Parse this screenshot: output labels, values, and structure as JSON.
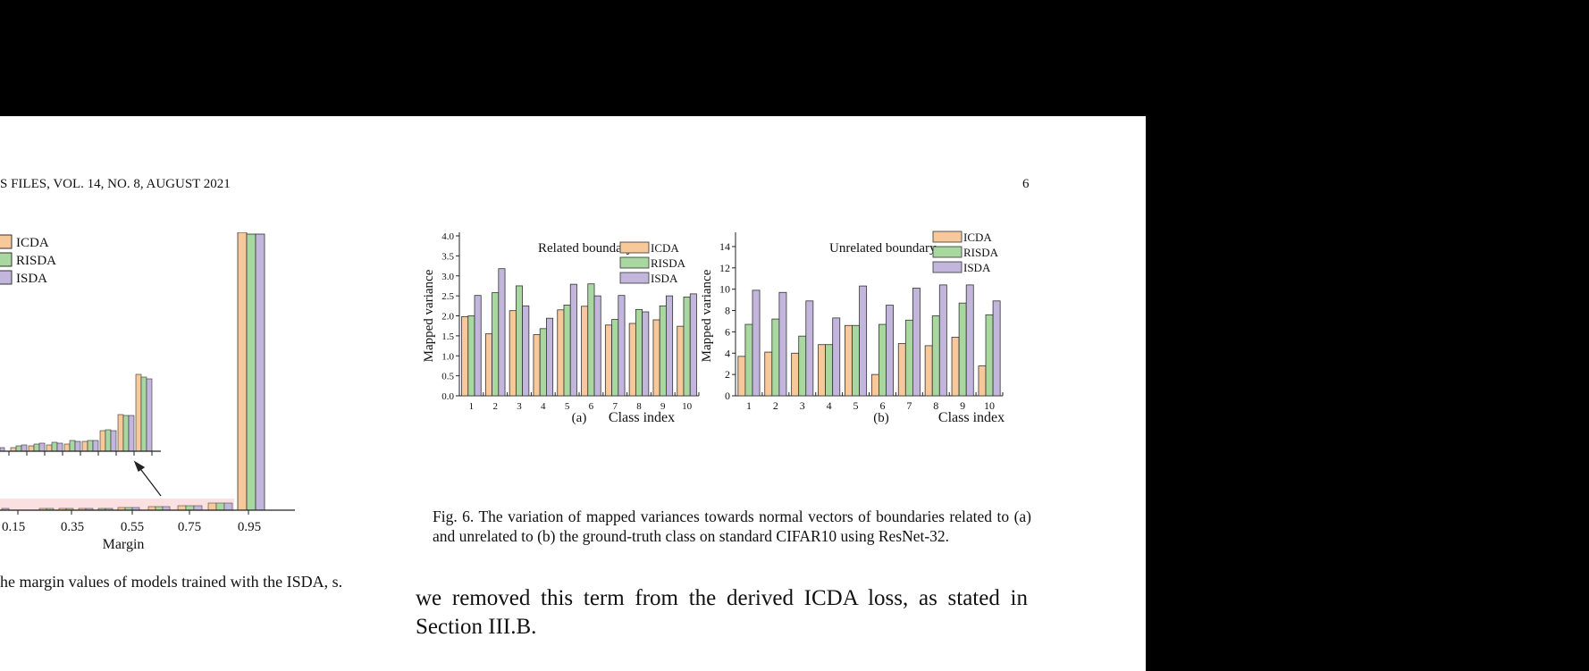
{
  "header": {
    "left": "S FILES, VOL. 14, NO. 8, AUGUST 2021",
    "page_number": "6"
  },
  "colors": {
    "ICDA": "#f7c89a",
    "RISDA": "#a8d8a0",
    "ISDA": "#c2b6dc"
  },
  "fig5": {
    "legend": [
      "ICDA",
      "RISDA",
      "ISDA"
    ],
    "xlabel": "Margin",
    "x_ticks": [
      "0.15",
      "0.35",
      "0.55",
      "0.75",
      "0.95"
    ],
    "caption": "he margin values of models trained with the ISDA, s."
  },
  "chart_data": [
    {
      "type": "bar",
      "title": "Related boundary",
      "panel_label": "(a)",
      "xlabel": "Class index",
      "ylabel": "Mapped variance",
      "ylim": [
        0,
        4.0
      ],
      "y_ticks": [
        "0.0",
        "0.5",
        "1.0",
        "1.5",
        "2.0",
        "2.5",
        "3.0",
        "3.5",
        "4.0"
      ],
      "categories": [
        "1",
        "2",
        "3",
        "4",
        "5",
        "6",
        "7",
        "8",
        "9",
        "10"
      ],
      "series": [
        {
          "name": "ICDA",
          "values": [
            1.98,
            1.55,
            2.13,
            1.53,
            2.15,
            2.24,
            1.77,
            1.81,
            1.9,
            1.74
          ]
        },
        {
          "name": "RISDA",
          "values": [
            2.0,
            2.58,
            2.75,
            1.68,
            2.27,
            2.8,
            1.91,
            2.16,
            2.25,
            2.47
          ]
        },
        {
          "name": "ISDA",
          "values": [
            2.51,
            3.18,
            2.25,
            1.94,
            2.79,
            2.5,
            2.51,
            2.1,
            2.5,
            2.55
          ]
        }
      ],
      "legend": "top-right"
    },
    {
      "type": "bar",
      "title": "Unrelated boundary",
      "panel_label": "(b)",
      "xlabel": "Class index",
      "ylabel": "Mapped variance",
      "ylim": [
        0,
        15
      ],
      "y_ticks": [
        "0",
        "2",
        "4",
        "6",
        "8",
        "10",
        "12",
        "14"
      ],
      "categories": [
        "1",
        "2",
        "3",
        "4",
        "5",
        "6",
        "7",
        "8",
        "9",
        "10"
      ],
      "series": [
        {
          "name": "ICDA",
          "values": [
            3.7,
            4.1,
            4.0,
            4.8,
            6.6,
            2.0,
            4.9,
            4.7,
            5.5,
            2.8
          ]
        },
        {
          "name": "RISDA",
          "values": [
            6.7,
            7.2,
            5.6,
            4.8,
            6.6,
            6.7,
            7.1,
            7.5,
            8.7,
            7.6
          ]
        },
        {
          "name": "ISDA",
          "values": [
            9.9,
            9.7,
            8.9,
            7.3,
            10.3,
            8.5,
            10.1,
            10.4,
            10.4,
            8.9
          ]
        }
      ],
      "legend": "top-right"
    }
  ],
  "fig6_caption": "Fig. 6.   The variation of mapped variances towards normal vectors of boundaries related to (a) and unrelated to (b) the ground-truth class on standard CIFAR10 using ResNet-32.",
  "body_text": "we removed this term from the derived ICDA loss, as stated in Section III.B."
}
